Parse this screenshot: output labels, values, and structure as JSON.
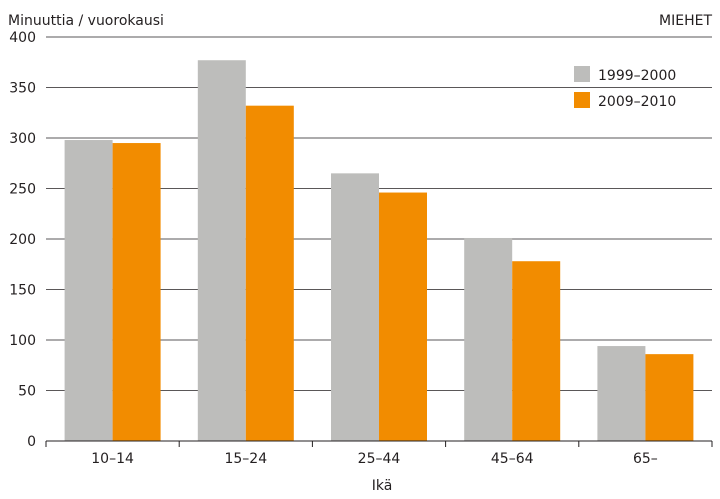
{
  "chart_data": {
    "type": "bar",
    "title": "",
    "ylabel": "Minuuttia / vuorokausi",
    "xlabel": "Ikä",
    "corner_label": "MIEHET",
    "categories": [
      "10–14",
      "15–24",
      "25–44",
      "45–64",
      "65–"
    ],
    "series": [
      {
        "name": "1999–2000",
        "color": "#bdbdbb",
        "values": [
          298,
          377,
          265,
          201,
          94
        ]
      },
      {
        "name": "2009–2010",
        "color": "#f28c00",
        "values": [
          295,
          332,
          246,
          178,
          86
        ]
      }
    ],
    "ylim": [
      0,
      400
    ],
    "yticks": [
      "0",
      "50",
      "100",
      "150",
      "200",
      "250",
      "300",
      "350",
      "400"
    ],
    "grid": true,
    "legend_position": "top-right"
  }
}
